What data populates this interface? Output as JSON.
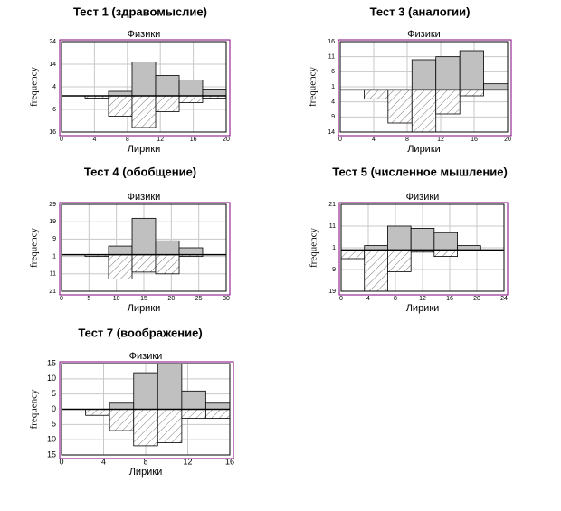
{
  "chart_data": [
    {
      "type": "histogram",
      "title": "Тест 1 (здравомыслие)",
      "ylabel": "frequency",
      "bins": [
        0,
        2.86,
        5.71,
        8.57,
        11.43,
        14.29,
        17.14,
        20
      ],
      "series": [
        {
          "name": "Физики",
          "color": "#c0c0c0",
          "values": [
            0,
            0,
            2,
            15,
            9,
            7,
            3
          ]
        },
        {
          "name": "Лирики",
          "color": "#ffffff",
          "hatch": true,
          "values": [
            0,
            -1,
            -9,
            -14,
            -7,
            -3,
            -1
          ]
        }
      ],
      "xlim": [
        0,
        20
      ],
      "xticks": [
        0,
        4,
        8,
        12,
        16,
        20
      ],
      "ylim": [
        -16,
        24
      ],
      "yticks": [
        24,
        14,
        4,
        {
          "value": -6,
          "label": "6"
        },
        {
          "value": -16,
          "label": "16"
        }
      ],
      "grid": true
    },
    {
      "type": "histogram",
      "title": "Тест 3 (аналогии)",
      "ylabel": "frequency",
      "bins": [
        0,
        2.86,
        5.71,
        8.57,
        11.43,
        14.29,
        17.14,
        20
      ],
      "series": [
        {
          "name": "Физики",
          "color": "#c0c0c0",
          "values": [
            0,
            0,
            0,
            10,
            11,
            13,
            2
          ]
        },
        {
          "name": "Лирики",
          "color": "#ffffff",
          "hatch": true,
          "values": [
            0,
            -3,
            -11,
            -14,
            -8,
            -2,
            0
          ]
        }
      ],
      "xlim": [
        0,
        20
      ],
      "xticks": [
        0,
        4,
        8,
        12,
        16,
        20
      ],
      "ylim": [
        -14,
        16
      ],
      "yticks": [
        16,
        11,
        6,
        1,
        {
          "value": -4,
          "label": "4"
        },
        {
          "value": -9,
          "label": "9"
        },
        {
          "value": -14,
          "label": "14"
        }
      ],
      "grid": true
    },
    {
      "type": "histogram",
      "title": "Тест 4 (обобщение)",
      "ylabel": "frequency",
      "bins": [
        0,
        4.29,
        8.57,
        12.86,
        17.14,
        21.43,
        25.71,
        30
      ],
      "series": [
        {
          "name": "Физики",
          "color": "#c0c0c0",
          "values": [
            0,
            0,
            5,
            21,
            8,
            4,
            0
          ]
        },
        {
          "name": "Лирики",
          "color": "#ffffff",
          "hatch": true,
          "values": [
            0,
            -1,
            -14,
            -10,
            -11,
            -1,
            0
          ]
        }
      ],
      "xlim": [
        0,
        30
      ],
      "xticks": [
        0,
        5,
        10,
        15,
        20,
        25,
        30
      ],
      "ylim": [
        -21,
        29
      ],
      "yticks": [
        29,
        19,
        9,
        {
          "value": -1,
          "label": "1"
        },
        {
          "value": -11,
          "label": "11"
        },
        {
          "value": -21,
          "label": "21"
        }
      ],
      "grid": true
    },
    {
      "type": "histogram",
      "title": "Тест 5 (численное мышление)",
      "ylabel": "frequency",
      "bins": [
        0,
        3.43,
        6.86,
        10.29,
        13.71,
        17.14,
        20.57,
        24
      ],
      "series": [
        {
          "name": "Физики",
          "color": "#c0c0c0",
          "values": [
            0,
            2,
            11,
            10,
            8,
            2,
            0
          ]
        },
        {
          "name": "Лирики",
          "color": "#ffffff",
          "hatch": true,
          "values": [
            -4,
            -19,
            -10,
            -1,
            -3,
            0,
            0
          ]
        }
      ],
      "xlim": [
        0,
        24
      ],
      "xticks": [
        0,
        4,
        8,
        12,
        16,
        20,
        24
      ],
      "ylim": [
        -19,
        21
      ],
      "yticks": [
        21,
        11,
        1,
        {
          "value": -9,
          "label": "9"
        },
        {
          "value": -19,
          "label": "19"
        }
      ],
      "grid": true
    },
    {
      "type": "histogram",
      "title": "Тест 7 (воображение)",
      "ylabel": "frequency",
      "bins": [
        0,
        2.29,
        4.57,
        6.86,
        9.14,
        11.43,
        13.71,
        16
      ],
      "series": [
        {
          "name": "Физики",
          "color": "#c0c0c0",
          "values": [
            0,
            0,
            2,
            12,
            15,
            6,
            2
          ]
        },
        {
          "name": "Лирики",
          "color": "#ffffff",
          "hatch": true,
          "values": [
            0,
            -2,
            -7,
            -12,
            -11,
            -3,
            -3
          ]
        }
      ],
      "xlim": [
        0,
        16
      ],
      "xticks": [
        0,
        4,
        8,
        12,
        16
      ],
      "ylim": [
        -15,
        15
      ],
      "yticks": [
        15,
        10,
        5,
        0,
        {
          "value": -5,
          "label": "5"
        },
        {
          "value": -10,
          "label": "10"
        },
        {
          "value": -15,
          "label": "15"
        }
      ],
      "grid": true
    }
  ]
}
